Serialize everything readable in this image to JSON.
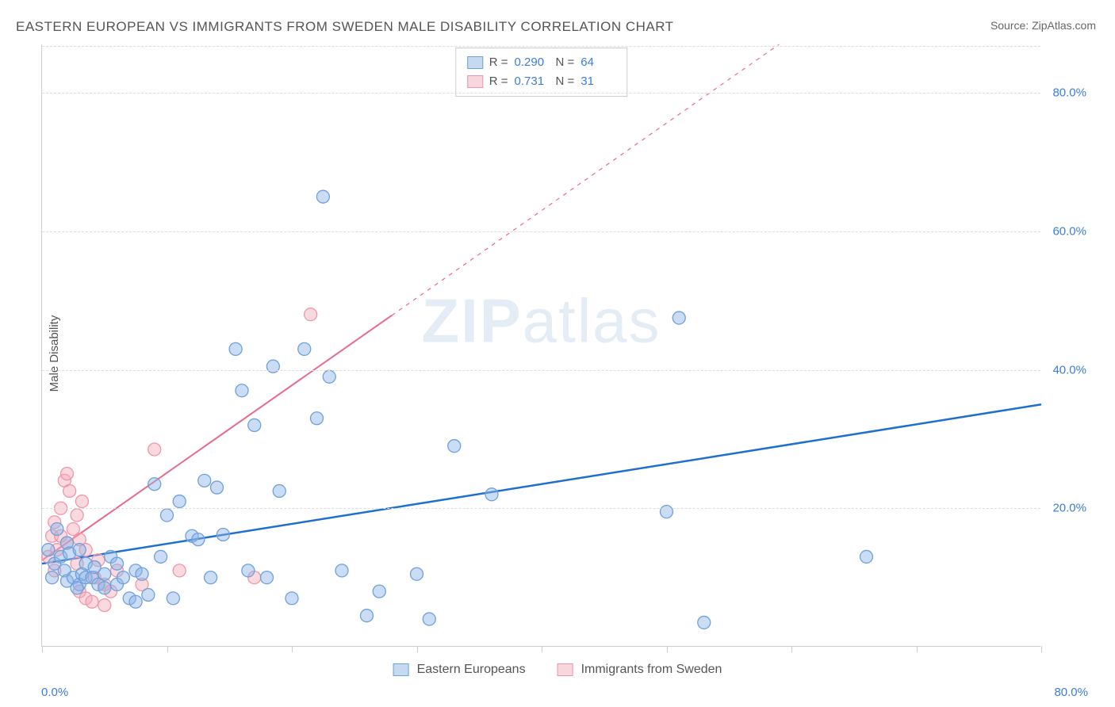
{
  "title": "EASTERN EUROPEAN VS IMMIGRANTS FROM SWEDEN MALE DISABILITY CORRELATION CHART",
  "source": "Source: ZipAtlas.com",
  "y_axis_label": "Male Disability",
  "watermark_bold": "ZIP",
  "watermark_rest": "atlas",
  "chart": {
    "type": "scatter",
    "xlim": [
      0,
      80
    ],
    "ylim": [
      0,
      87
    ],
    "x_tick_start": "0.0%",
    "x_tick_end": "80.0%",
    "x_tick_positions": [
      0,
      10,
      20,
      30,
      40,
      50,
      60,
      70,
      80
    ],
    "y_ticks": [
      {
        "value": 20,
        "label": "20.0%"
      },
      {
        "value": 40,
        "label": "40.0%"
      },
      {
        "value": 60,
        "label": "60.0%"
      },
      {
        "value": 80,
        "label": "80.0%"
      }
    ],
    "grid_color": "#dddddd",
    "background_color": "#ffffff",
    "series": [
      {
        "name": "Eastern Europeans",
        "color_fill": "rgba(140,180,230,0.45)",
        "color_stroke": "#6ea0dc",
        "r_label": "R =",
        "r_value": "0.290",
        "n_label": "N =",
        "n_value": "64",
        "regression": {
          "x1": 0,
          "y1": 12,
          "x2": 80,
          "y2": 35,
          "color": "#1f6fd0",
          "width": 2.5,
          "dash": "none"
        },
        "points": [
          [
            0.5,
            14
          ],
          [
            1,
            12
          ],
          [
            1.5,
            13
          ],
          [
            1.8,
            11
          ],
          [
            2,
            15
          ],
          [
            2,
            9.5
          ],
          [
            2.2,
            13.5
          ],
          [
            2.5,
            10
          ],
          [
            3,
            14
          ],
          [
            3,
            9
          ],
          [
            3.2,
            10.5
          ],
          [
            3.5,
            10
          ],
          [
            3.5,
            12
          ],
          [
            4,
            10
          ],
          [
            4.2,
            11.5
          ],
          [
            4.5,
            9
          ],
          [
            5,
            10.5
          ],
          [
            5,
            8.5
          ],
          [
            5.5,
            13
          ],
          [
            6,
            12
          ],
          [
            6,
            9
          ],
          [
            6.5,
            10
          ],
          [
            7,
            7
          ],
          [
            7.5,
            11
          ],
          [
            7.5,
            6.5
          ],
          [
            8,
            10.5
          ],
          [
            8.5,
            7.5
          ],
          [
            9,
            23.5
          ],
          [
            9.5,
            13
          ],
          [
            10,
            19
          ],
          [
            10.5,
            7
          ],
          [
            11,
            21
          ],
          [
            12,
            16
          ],
          [
            12.5,
            15.5
          ],
          [
            13,
            24
          ],
          [
            13.5,
            10
          ],
          [
            14,
            23
          ],
          [
            14.5,
            16.2
          ],
          [
            15.5,
            43
          ],
          [
            16,
            37
          ],
          [
            16.5,
            11
          ],
          [
            17,
            32
          ],
          [
            18,
            10
          ],
          [
            18.5,
            40.5
          ],
          [
            19,
            22.5
          ],
          [
            20,
            7
          ],
          [
            21,
            43
          ],
          [
            22,
            33
          ],
          [
            22.5,
            65
          ],
          [
            23,
            39
          ],
          [
            24,
            11
          ],
          [
            26,
            4.5
          ],
          [
            27,
            8
          ],
          [
            30,
            10.5
          ],
          [
            31,
            4
          ],
          [
            33,
            29
          ],
          [
            36,
            22
          ],
          [
            50,
            19.5
          ],
          [
            51,
            47.5
          ],
          [
            53,
            3.5
          ],
          [
            66,
            13
          ],
          [
            1.2,
            17
          ],
          [
            0.8,
            10
          ],
          [
            2.8,
            8.5
          ]
        ]
      },
      {
        "name": "Immigrants from Sweden",
        "color_fill": "rgba(245,170,185,0.45)",
        "color_stroke": "#f096aa",
        "r_label": "R =",
        "r_value": "0.731",
        "n_label": "N =",
        "n_value": "31",
        "regression": {
          "x1": 0,
          "y1": 12.5,
          "x2": 59,
          "y2": 87,
          "color": "#e86a8a",
          "width": 2,
          "dash": "none",
          "extend_dash_to_x": 80
        },
        "points": [
          [
            0.5,
            13
          ],
          [
            0.8,
            16
          ],
          [
            1,
            11
          ],
          [
            1,
            18
          ],
          [
            1.2,
            14
          ],
          [
            1.5,
            20
          ],
          [
            1.5,
            16
          ],
          [
            1.8,
            24
          ],
          [
            2,
            25
          ],
          [
            2,
            15
          ],
          [
            2.2,
            22.5
          ],
          [
            2.5,
            17
          ],
          [
            2.8,
            19
          ],
          [
            2.8,
            12
          ],
          [
            3,
            15.5
          ],
          [
            3,
            8
          ],
          [
            3.2,
            21
          ],
          [
            3.5,
            7
          ],
          [
            3.5,
            14
          ],
          [
            4,
            6.5
          ],
          [
            4.2,
            10
          ],
          [
            4.5,
            12.5
          ],
          [
            5,
            9
          ],
          [
            5,
            6
          ],
          [
            5.5,
            8
          ],
          [
            6,
            11
          ],
          [
            8,
            9
          ],
          [
            9,
            28.5
          ],
          [
            11,
            11
          ],
          [
            17,
            10
          ],
          [
            21.5,
            48
          ]
        ]
      }
    ],
    "marker_radius": 8,
    "marker_stroke_width": 1.3
  },
  "bottom_legend": {
    "series1": "Eastern Europeans",
    "series2": "Immigrants from Sweden"
  }
}
